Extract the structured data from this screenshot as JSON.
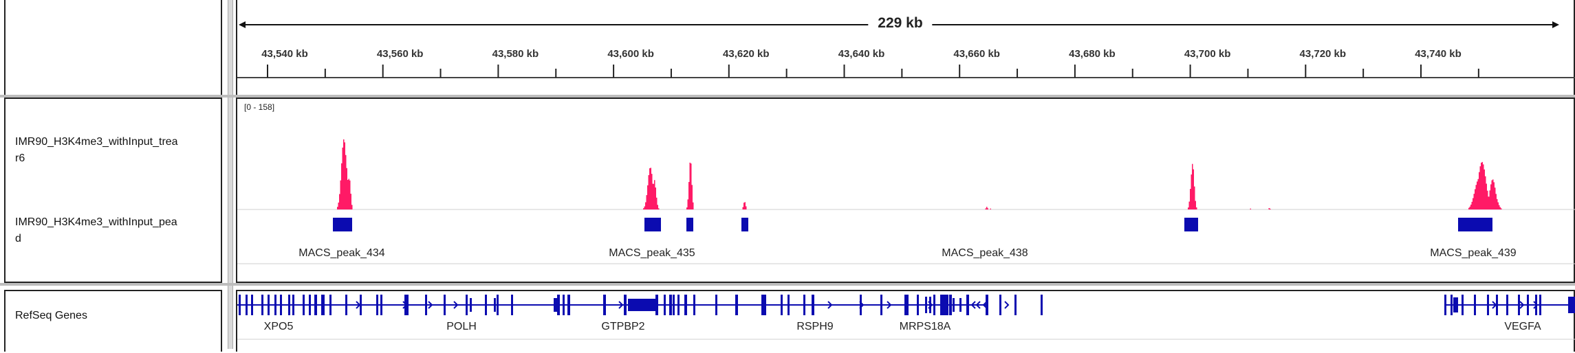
{
  "ruler": {
    "span_label": "229 kb",
    "ticks": [
      "43,540 kb",
      "43,560 kb",
      "43,580 kb",
      "43,600 kb",
      "43,620 kb",
      "43,640 kb",
      "43,660 kb",
      "43,680 kb",
      "43,700 kb",
      "43,720 kb",
      "43,740 kb"
    ]
  },
  "tracks": {
    "signal_name": "IMR90_H3K4me3_withInput_treat_r6",
    "signal_name_line1": "IMR90_H3K4me3_withInput_trea",
    "signal_name_line2": "r6",
    "signal_range": "[0 - 158]",
    "peak_name_line1": "IMR90_H3K4me3_withInput_pea",
    "peak_name_line2": "d",
    "peak_labels": [
      "MACS_peak_434",
      "MACS_peak_435",
      "MACS_peak_438",
      "MACS_peak_439"
    ],
    "gene_track_name": "RefSeq Genes",
    "gene_labels": [
      "XPO5",
      "POLH",
      "GTPBP2",
      "RSPH9",
      "MRPS18A",
      "VEGFA"
    ]
  },
  "colors": {
    "signal": "#ff1a66",
    "feature": "#0b0bb0",
    "border": "#222222"
  }
}
